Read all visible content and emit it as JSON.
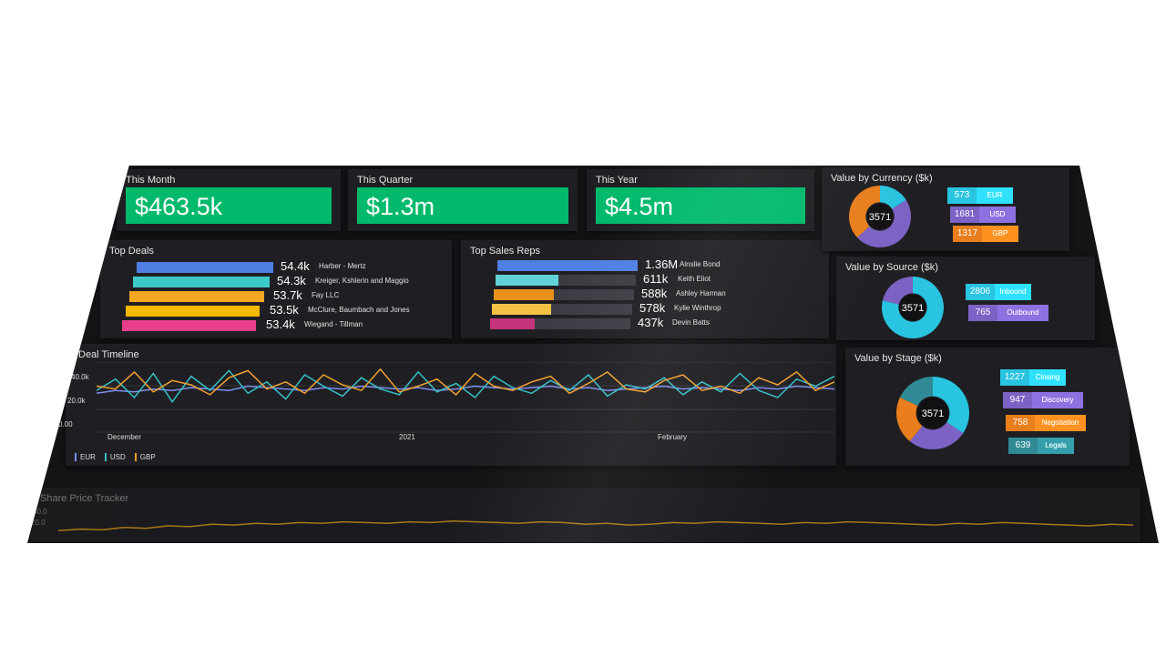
{
  "kpis": [
    {
      "title": "This Month",
      "value": "$463.5k"
    },
    {
      "title": "This Quarter",
      "value": "$1.3m"
    },
    {
      "title": "This Year",
      "value": "$4.5m"
    }
  ],
  "top_deals": {
    "title": "Top Deals",
    "items": [
      {
        "value": "54.4k",
        "name": "Harber - Mertz",
        "color": "#4f7fe3",
        "fraction": 1.0
      },
      {
        "value": "54.3k",
        "name": "Kreiger, Kshlerin and Maggio",
        "color": "#3ec9c9",
        "fraction": 0.998
      },
      {
        "value": "53.7k",
        "name": "Fay LLC",
        "color": "#f5a623",
        "fraction": 0.987
      },
      {
        "value": "53.5k",
        "name": "McClure, Baumbach and Jones",
        "color": "#f5b800",
        "fraction": 0.983
      },
      {
        "value": "53.4k",
        "name": "Wiegand - Tillman",
        "color": "#e83e8c",
        "fraction": 0.98
      }
    ]
  },
  "top_sales_reps": {
    "title": "Top Sales Reps",
    "items": [
      {
        "value": "1.36M",
        "name": "Ainslie Bond",
        "color": "#4f7fe3",
        "fraction": 1.0
      },
      {
        "value": "611k",
        "name": "Keith Eliot",
        "color": "#5fd3d8",
        "fraction": 0.45
      },
      {
        "value": "588k",
        "name": "Ashley Harman",
        "color": "#e8901c",
        "fraction": 0.43
      },
      {
        "value": "578k",
        "name": "Kylie Winthrop",
        "color": "#f4c145",
        "fraction": 0.42
      },
      {
        "value": "437k",
        "name": "Devin Batts",
        "color": "#c4347a",
        "fraction": 0.32
      }
    ]
  },
  "deal_timeline": {
    "title": "Deal Timeline",
    "y_ticks": [
      "40.0k",
      "20.0k",
      "0.00"
    ],
    "x_ticks": [
      "December",
      "2021",
      "February"
    ],
    "legend": [
      "EUR",
      "USD",
      "GBP"
    ]
  },
  "chart_data": {
    "type": "line",
    "title": "Deal Timeline",
    "ylim": [
      0,
      50000
    ],
    "series": [
      {
        "name": "EUR",
        "color": "#7b8ff0",
        "values": [
          28000,
          30000,
          29000,
          31000,
          30000,
          32000,
          31000,
          30000,
          33000,
          32000,
          31000,
          30000,
          32000,
          31000,
          33000,
          32000,
          31000,
          32000,
          30000,
          31000,
          33000,
          32000,
          31000,
          32000,
          33000,
          31000,
          32000,
          30000,
          31000,
          32000,
          33000,
          31000,
          32000,
          31000,
          30000,
          32000,
          31000,
          33000,
          32000,
          31000
        ]
      },
      {
        "name": "USD",
        "color": "#35bfc4",
        "values": [
          30000,
          38000,
          25000,
          42000,
          22000,
          40000,
          30000,
          44000,
          28000,
          36000,
          24000,
          41000,
          33000,
          26000,
          39000,
          31000,
          27000,
          43000,
          29000,
          35000,
          25000,
          40000,
          32000,
          28000,
          37000,
          30000,
          41000,
          26000,
          34000,
          31000,
          39000,
          27000,
          36000,
          29000,
          42000,
          30000,
          25000,
          38000,
          33000,
          40000
        ]
      },
      {
        "name": "GBP",
        "color": "#f0a030",
        "values": [
          33000,
          31000,
          43000,
          29000,
          37000,
          34000,
          27000,
          39000,
          44000,
          31000,
          36000,
          28000,
          41000,
          34000,
          30000,
          45000,
          29000,
          33000,
          38000,
          27000,
          42000,
          33000,
          30000,
          36000,
          40000,
          28000,
          35000,
          43000,
          31000,
          29000,
          37000,
          41000,
          30000,
          33000,
          28000,
          39000,
          34000,
          43000,
          30000,
          36000
        ]
      }
    ]
  },
  "share_tracker": {
    "title": "Share Price Tracker",
    "y_ticks": [
      "40.0",
      "20.0"
    ]
  },
  "share_chart_data": {
    "type": "line",
    "ylim": [
      0,
      45
    ],
    "series": [
      {
        "name": "",
        "color": "#e8a317",
        "values": [
          12,
          14,
          13,
          16,
          15,
          18,
          17,
          20,
          19,
          21,
          20,
          22,
          21,
          23,
          22,
          21,
          23,
          22,
          24,
          23,
          22,
          21,
          23,
          22,
          20,
          21,
          19,
          20,
          22,
          21,
          23,
          22,
          21,
          20,
          22,
          21,
          23,
          22,
          21,
          20,
          19,
          21,
          20,
          22,
          21,
          20,
          19,
          18,
          20,
          19
        ]
      }
    ]
  },
  "currency": {
    "title": "Value by Currency ($k)",
    "total": "3571",
    "slices": [
      {
        "value": "573",
        "label": "EUR",
        "color": "#29c4e0",
        "amount": 573
      },
      {
        "value": "1681",
        "label": "USD",
        "color": "#7b62c4",
        "amount": 1681
      },
      {
        "value": "1317",
        "label": "GBP",
        "color": "#e87e1c",
        "amount": 1317
      }
    ]
  },
  "source": {
    "title": "Value by Source ($k)",
    "total": "3571",
    "slices": [
      {
        "value": "2806",
        "label": "Inbound",
        "color": "#29c4e0",
        "amount": 2806
      },
      {
        "value": "765",
        "label": "Outbound",
        "color": "#7b62c4",
        "amount": 765
      }
    ]
  },
  "stage": {
    "title": "Value by Stage ($k)",
    "total": "3571",
    "slices": [
      {
        "value": "1227",
        "label": "Closing",
        "color": "#29c4e0",
        "amount": 1227
      },
      {
        "value": "947",
        "label": "Discovery",
        "color": "#7b62c4",
        "amount": 947
      },
      {
        "value": "758",
        "label": "Negotiation",
        "color": "#e87e1c",
        "amount": 758
      },
      {
        "value": "639",
        "label": "Legals",
        "color": "#2f8a96",
        "amount": 639
      }
    ]
  }
}
